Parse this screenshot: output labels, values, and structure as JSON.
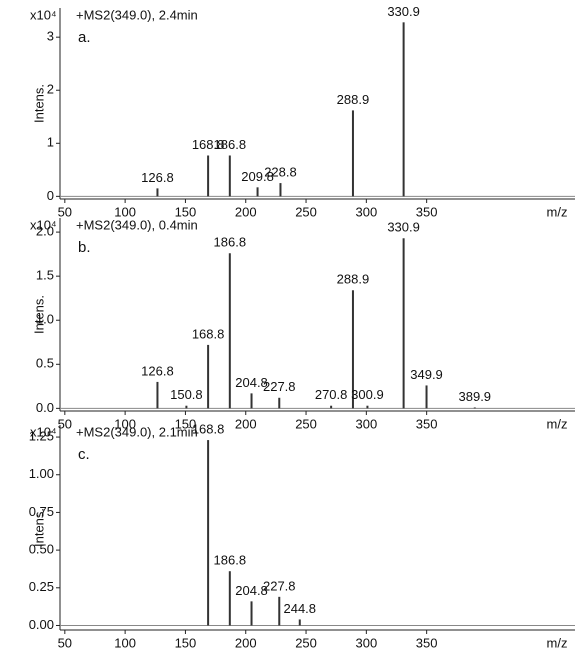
{
  "chart_data": [
    {
      "type": "bar",
      "title": "+MS2(349.0), 2.4min",
      "label": "a.",
      "y_label": "Intens.",
      "x_label": "m/z",
      "y_multiplier": "x10⁴",
      "x": [
        126.8,
        168.8,
        186.8,
        209.8,
        228.8,
        288.9,
        330.9
      ],
      "values": [
        0.15,
        0.77,
        0.77,
        0.17,
        0.25,
        1.62,
        3.28
      ],
      "color": "#333333",
      "xlim": [
        46,
        473
      ],
      "ylim": [
        -0.05,
        3.55
      ],
      "xticks": [
        50,
        100,
        150,
        200,
        250,
        300,
        350
      ],
      "yticks": [
        0,
        1,
        2,
        3
      ]
    },
    {
      "type": "bar",
      "title": "+MS2(349.0), 0.4min",
      "label": "b.",
      "y_label": "Intens.",
      "x_label": "m/z",
      "y_multiplier": "x10⁴",
      "x": [
        126.8,
        150.8,
        168.8,
        186.8,
        204.8,
        227.8,
        270.8,
        288.9,
        300.9,
        330.9,
        349.9,
        389.9
      ],
      "values": [
        0.3,
        0.03,
        0.72,
        1.76,
        0.17,
        0.12,
        0.03,
        1.34,
        0.03,
        1.93,
        0.26,
        0.01
      ],
      "color": "#333333",
      "xlim": [
        46,
        473
      ],
      "ylim": [
        -0.03,
        2.16
      ],
      "xticks": [
        50,
        100,
        150,
        200,
        250,
        300,
        350
      ],
      "yticks": [
        {
          "value": 0,
          "label": "0.0"
        },
        0.5,
        {
          "value": 1,
          "label": "1.0"
        },
        1.5,
        {
          "value": 2,
          "label": "2.0"
        }
      ]
    },
    {
      "type": "bar",
      "title": "+MS2(349.0), 2.1min",
      "label": "c.",
      "y_label": "Intens.",
      "x_label": "m/z",
      "y_multiplier": "x10⁴",
      "x": [
        168.8,
        186.8,
        204.8,
        227.8,
        244.8
      ],
      "values": [
        1.23,
        0.36,
        0.16,
        0.19,
        0.04
      ],
      "color": "#333333",
      "xlim": [
        46,
        473
      ],
      "ylim": [
        -0.03,
        1.33
      ],
      "xticks": [
        50,
        100,
        150,
        200,
        250,
        300,
        350
      ],
      "yticks": [
        {
          "value": 0,
          "label": "0.00"
        },
        0.25,
        {
          "value": 0.5,
          "label": "0.50"
        },
        0.75,
        {
          "value": 1,
          "label": "1.00"
        },
        1.25
      ]
    }
  ]
}
